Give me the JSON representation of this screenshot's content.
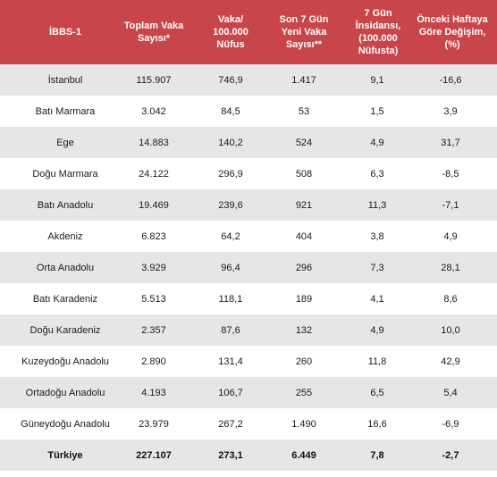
{
  "colors": {
    "header_bg": "#c8454a",
    "row_alt_bg": "#e6e6e6",
    "header_text": "#ffffff"
  },
  "headers": [
    "İBBS-1",
    "Toplam Vaka\nSayısı*",
    "Vaka/\n100.000\nNüfus",
    "Son 7 Gün\nYeni Vaka\nSayısı**",
    "7 Gün\nİnsidansı,\n(100.000\nNüfusta)",
    "Önceki Haftaya\nGöre Değişim,\n(%)"
  ],
  "rows": [
    [
      "İstanbul",
      "115.907",
      "746,9",
      "1.417",
      "9,1",
      "-16,6"
    ],
    [
      "Batı Marmara",
      "3.042",
      "84,5",
      "53",
      "1,5",
      "3,9"
    ],
    [
      "Ege",
      "14.883",
      "140,2",
      "524",
      "4,9",
      "31,7"
    ],
    [
      "Doğu Marmara",
      "24.122",
      "296,9",
      "508",
      "6,3",
      "-8,5"
    ],
    [
      "Batı Anadolu",
      "19.469",
      "239,6",
      "921",
      "11,3",
      "-7,1"
    ],
    [
      "Akdeniz",
      "6.823",
      "64,2",
      "404",
      "3,8",
      "4,9"
    ],
    [
      "Orta Anadolu",
      "3.929",
      "96,4",
      "296",
      "7,3",
      "28,1"
    ],
    [
      "Batı Karadeniz",
      "5.513",
      "118,1",
      "189",
      "4,1",
      "8,6"
    ],
    [
      "Doğu Karadeniz",
      "2.357",
      "87,6",
      "132",
      "4,9",
      "10,0"
    ],
    [
      "Kuzeydoğu Anadolu",
      "2.890",
      "131,4",
      "260",
      "11,8",
      "42,9"
    ],
    [
      "Ortadoğu Anadolu",
      "4.193",
      "106,7",
      "255",
      "6,5",
      "5,4"
    ],
    [
      "Güneydoğu Anadolu",
      "23.979",
      "267,2",
      "1.490",
      "16,6",
      "-6,9"
    ]
  ],
  "total": [
    "Türkiye",
    "227.107",
    "273,1",
    "6.449",
    "7,8",
    "-2,7"
  ]
}
